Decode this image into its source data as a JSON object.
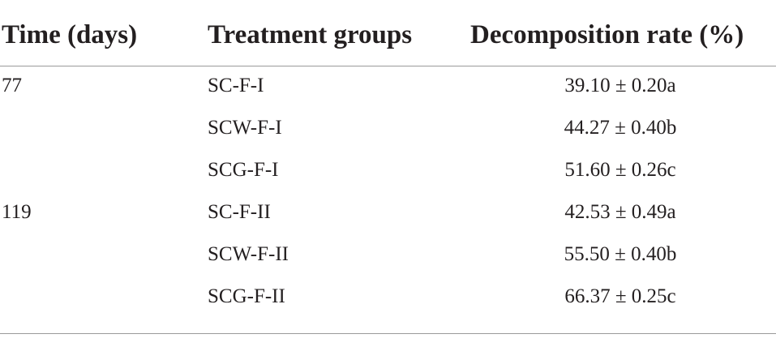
{
  "table": {
    "headers": [
      "Time (days)",
      "Treatment groups",
      "Decomposition rate (%)"
    ],
    "rows": [
      {
        "time": "77",
        "group": "SC-F-I",
        "rate": "39.10 ± 0.20a"
      },
      {
        "time": "",
        "group": "SCW-F-I",
        "rate": "44.27 ± 0.40b"
      },
      {
        "time": "",
        "group": "SCG-F-I",
        "rate": "51.60 ± 0.26c"
      },
      {
        "time": "119",
        "group": "SC-F-II",
        "rate": "42.53 ± 0.49a"
      },
      {
        "time": "",
        "group": "SCW-F-II",
        "rate": "55.50 ± 0.40b"
      },
      {
        "time": "",
        "group": "SCG-F-II",
        "rate": "66.37 ± 0.25c"
      }
    ]
  }
}
